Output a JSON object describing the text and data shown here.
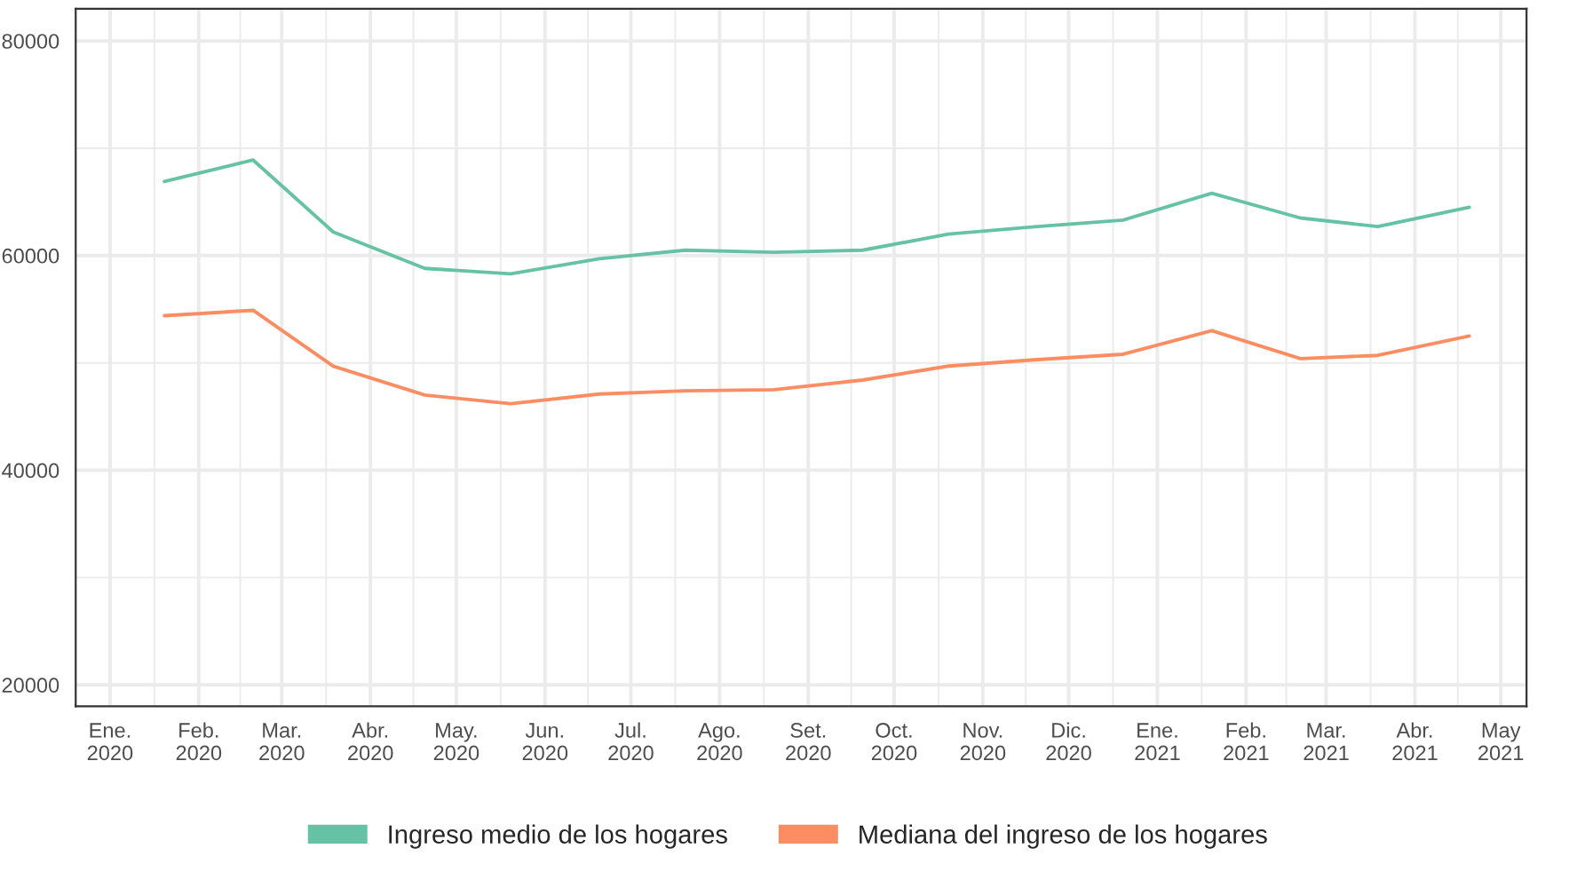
{
  "chart_data": {
    "type": "line",
    "x": [
      "2020-01-20",
      "2020-02-20",
      "2020-03-19",
      "2020-04-20",
      "2020-05-20",
      "2020-06-20",
      "2020-07-20",
      "2020-08-20",
      "2020-09-20",
      "2020-10-20",
      "2020-11-20",
      "2020-12-20",
      "2021-01-20",
      "2021-02-20",
      "2021-03-19",
      "2021-04-20"
    ],
    "series": [
      {
        "name": "Ingreso medio de los hogares",
        "color": "#66c2a5",
        "values": [
          66900,
          68900,
          62200,
          58800,
          58300,
          59700,
          60500,
          60300,
          60500,
          62000,
          62700,
          63300,
          65800,
          63500,
          62700,
          64500
        ]
      },
      {
        "name": "Mediana del ingreso de los hogares",
        "color": "#fc8d62",
        "values": [
          54400,
          54900,
          49700,
          47000,
          46200,
          47100,
          47400,
          47500,
          48400,
          49700,
          50300,
          50800,
          53000,
          50400,
          50700,
          52500
        ]
      }
    ],
    "ylim": [
      18000,
      83000
    ],
    "yticks": [
      20000,
      40000,
      60000,
      80000
    ],
    "xlim": [
      "2019-12-20",
      "2021-05-10"
    ],
    "xticks": [
      {
        "value": "2020-01-01",
        "label": "Ene.\n2020"
      },
      {
        "value": "2020-02-01",
        "label": "Feb.\n2020"
      },
      {
        "value": "2020-03-01",
        "label": "Mar.\n2020"
      },
      {
        "value": "2020-04-01",
        "label": "Abr.\n2020"
      },
      {
        "value": "2020-05-01",
        "label": "May.\n2020"
      },
      {
        "value": "2020-06-01",
        "label": "Jun.\n2020"
      },
      {
        "value": "2020-07-01",
        "label": "Jul.\n2020"
      },
      {
        "value": "2020-08-01",
        "label": "Ago.\n2020"
      },
      {
        "value": "2020-09-01",
        "label": "Set.\n2020"
      },
      {
        "value": "2020-10-01",
        "label": "Oct.\n2020"
      },
      {
        "value": "2020-11-01",
        "label": "Nov.\n2020"
      },
      {
        "value": "2020-12-01",
        "label": "Dic.\n2020"
      },
      {
        "value": "2021-01-01",
        "label": "Ene.\n2021"
      },
      {
        "value": "2021-02-01",
        "label": "Feb.\n2021"
      },
      {
        "value": "2021-03-01",
        "label": "Mar.\n2021"
      },
      {
        "value": "2021-04-01",
        "label": "Abr.\n2021"
      },
      {
        "value": "2021-05-01",
        "label": "May\n2021"
      }
    ],
    "grid": true,
    "legend": "bottom",
    "marker": "none",
    "line_style": "solid"
  }
}
